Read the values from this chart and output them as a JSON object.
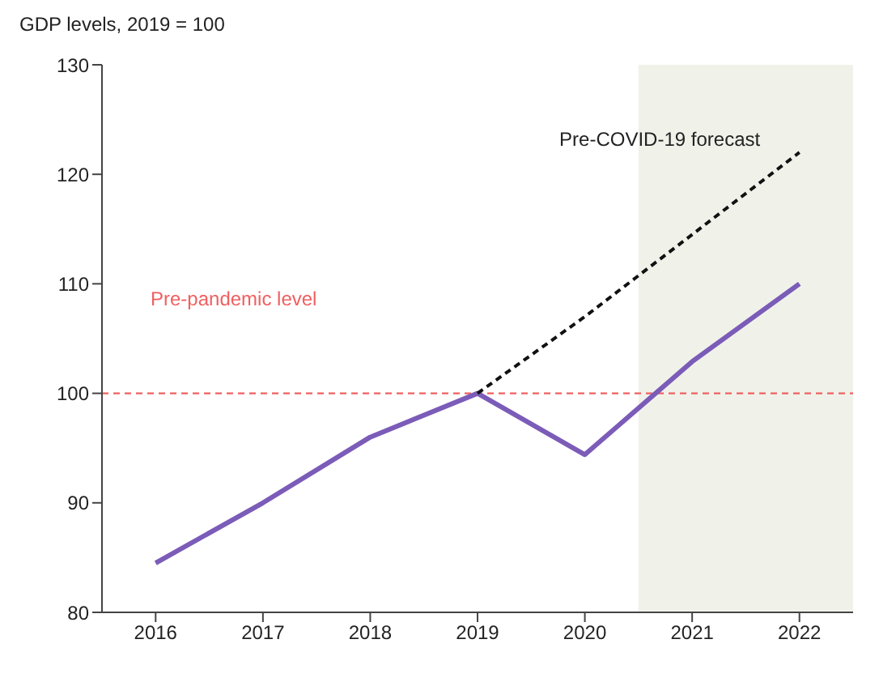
{
  "chart_data": {
    "type": "line",
    "title": "GDP levels, 2019 = 100",
    "x": [
      2016,
      2017,
      2018,
      2019,
      2020,
      2021,
      2022
    ],
    "series": [
      {
        "color": "#7b5cb8",
        "values": [
          84.5,
          90,
          96,
          100,
          94.4,
          102.9,
          110
        ],
        "line_style": "solid"
      },
      {
        "name": "Pre-COVID-19 forecast",
        "color": "#111111",
        "x": [
          2019,
          2020,
          2021,
          2022
        ],
        "values": [
          100,
          107,
          114.5,
          122
        ],
        "line_style": "dashed"
      }
    ],
    "xlim": [
      2015.5,
      2022.5
    ],
    "xticks": [
      2016,
      2017,
      2018,
      2019,
      2020,
      2021,
      2022
    ],
    "ylim": [
      80,
      130
    ],
    "yticks": [
      80,
      90,
      100,
      110,
      120,
      130
    ],
    "ref_lines": [
      {
        "axis": "y",
        "value": 100,
        "label": "Pre-pandemic level",
        "color": "#f06060",
        "line_style": "dashed"
      }
    ],
    "bands": [
      {
        "axis": "x",
        "from": 2020.5,
        "to": 2022.5,
        "color": "#f0f2ea"
      }
    ],
    "grid": false,
    "legend": false,
    "marker": "none"
  }
}
